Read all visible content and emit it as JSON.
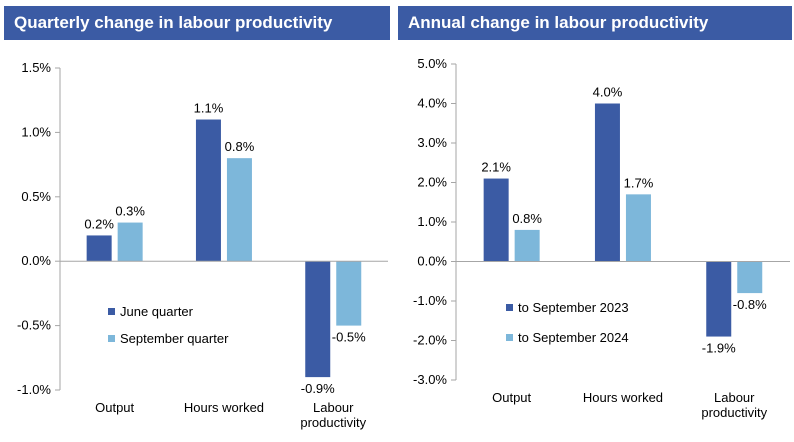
{
  "colors": {
    "header_bg": "#3b5ba4",
    "header_text": "#ffffff",
    "series_dark": "#3b5ba4",
    "series_light": "#7db7da",
    "axis": "#a6a6a6"
  },
  "chart_data": [
    {
      "type": "bar",
      "title": "Quarterly change in labour productivity",
      "categories": [
        "Output",
        "Hours worked",
        "Labour productivity"
      ],
      "series": [
        {
          "name": "June quarter",
          "values": [
            0.2,
            1.1,
            -0.9
          ],
          "labels": [
            "0.2%",
            "1.1%",
            "-0.9%"
          ]
        },
        {
          "name": "September quarter",
          "values": [
            0.3,
            0.8,
            -0.5
          ],
          "labels": [
            "0.3%",
            "0.8%",
            "-0.5%"
          ]
        }
      ],
      "ylim": [
        -1.0,
        1.5
      ],
      "yticks": [
        1.5,
        1.0,
        0.5,
        0.0,
        -0.5,
        -1.0
      ],
      "ytick_labels": [
        "1.5%",
        "1.0%",
        "0.5%",
        "0.0%",
        "-0.5%",
        "-1.0%"
      ],
      "legend_position": "lower-left",
      "grid": false
    },
    {
      "type": "bar",
      "title": "Annual change in labour productivity",
      "categories": [
        "Output",
        "Hours worked",
        "Labour productivity"
      ],
      "series": [
        {
          "name": "to September 2023",
          "values": [
            2.1,
            4.0,
            -1.9
          ],
          "labels": [
            "2.1%",
            "4.0%",
            "-1.9%"
          ]
        },
        {
          "name": "to September 2024",
          "values": [
            0.8,
            1.7,
            -0.8
          ],
          "labels": [
            "0.8%",
            "1.7%",
            "-0.8%"
          ]
        }
      ],
      "ylim": [
        -3.0,
        5.0
      ],
      "yticks": [
        5.0,
        4.0,
        3.0,
        2.0,
        1.0,
        0.0,
        -1.0,
        -2.0,
        -3.0
      ],
      "ytick_labels": [
        "5.0%",
        "4.0%",
        "3.0%",
        "2.0%",
        "1.0%",
        "0.0%",
        "-1.0%",
        "-2.0%",
        "-3.0%"
      ],
      "legend_position": "lower-left",
      "grid": false
    }
  ]
}
